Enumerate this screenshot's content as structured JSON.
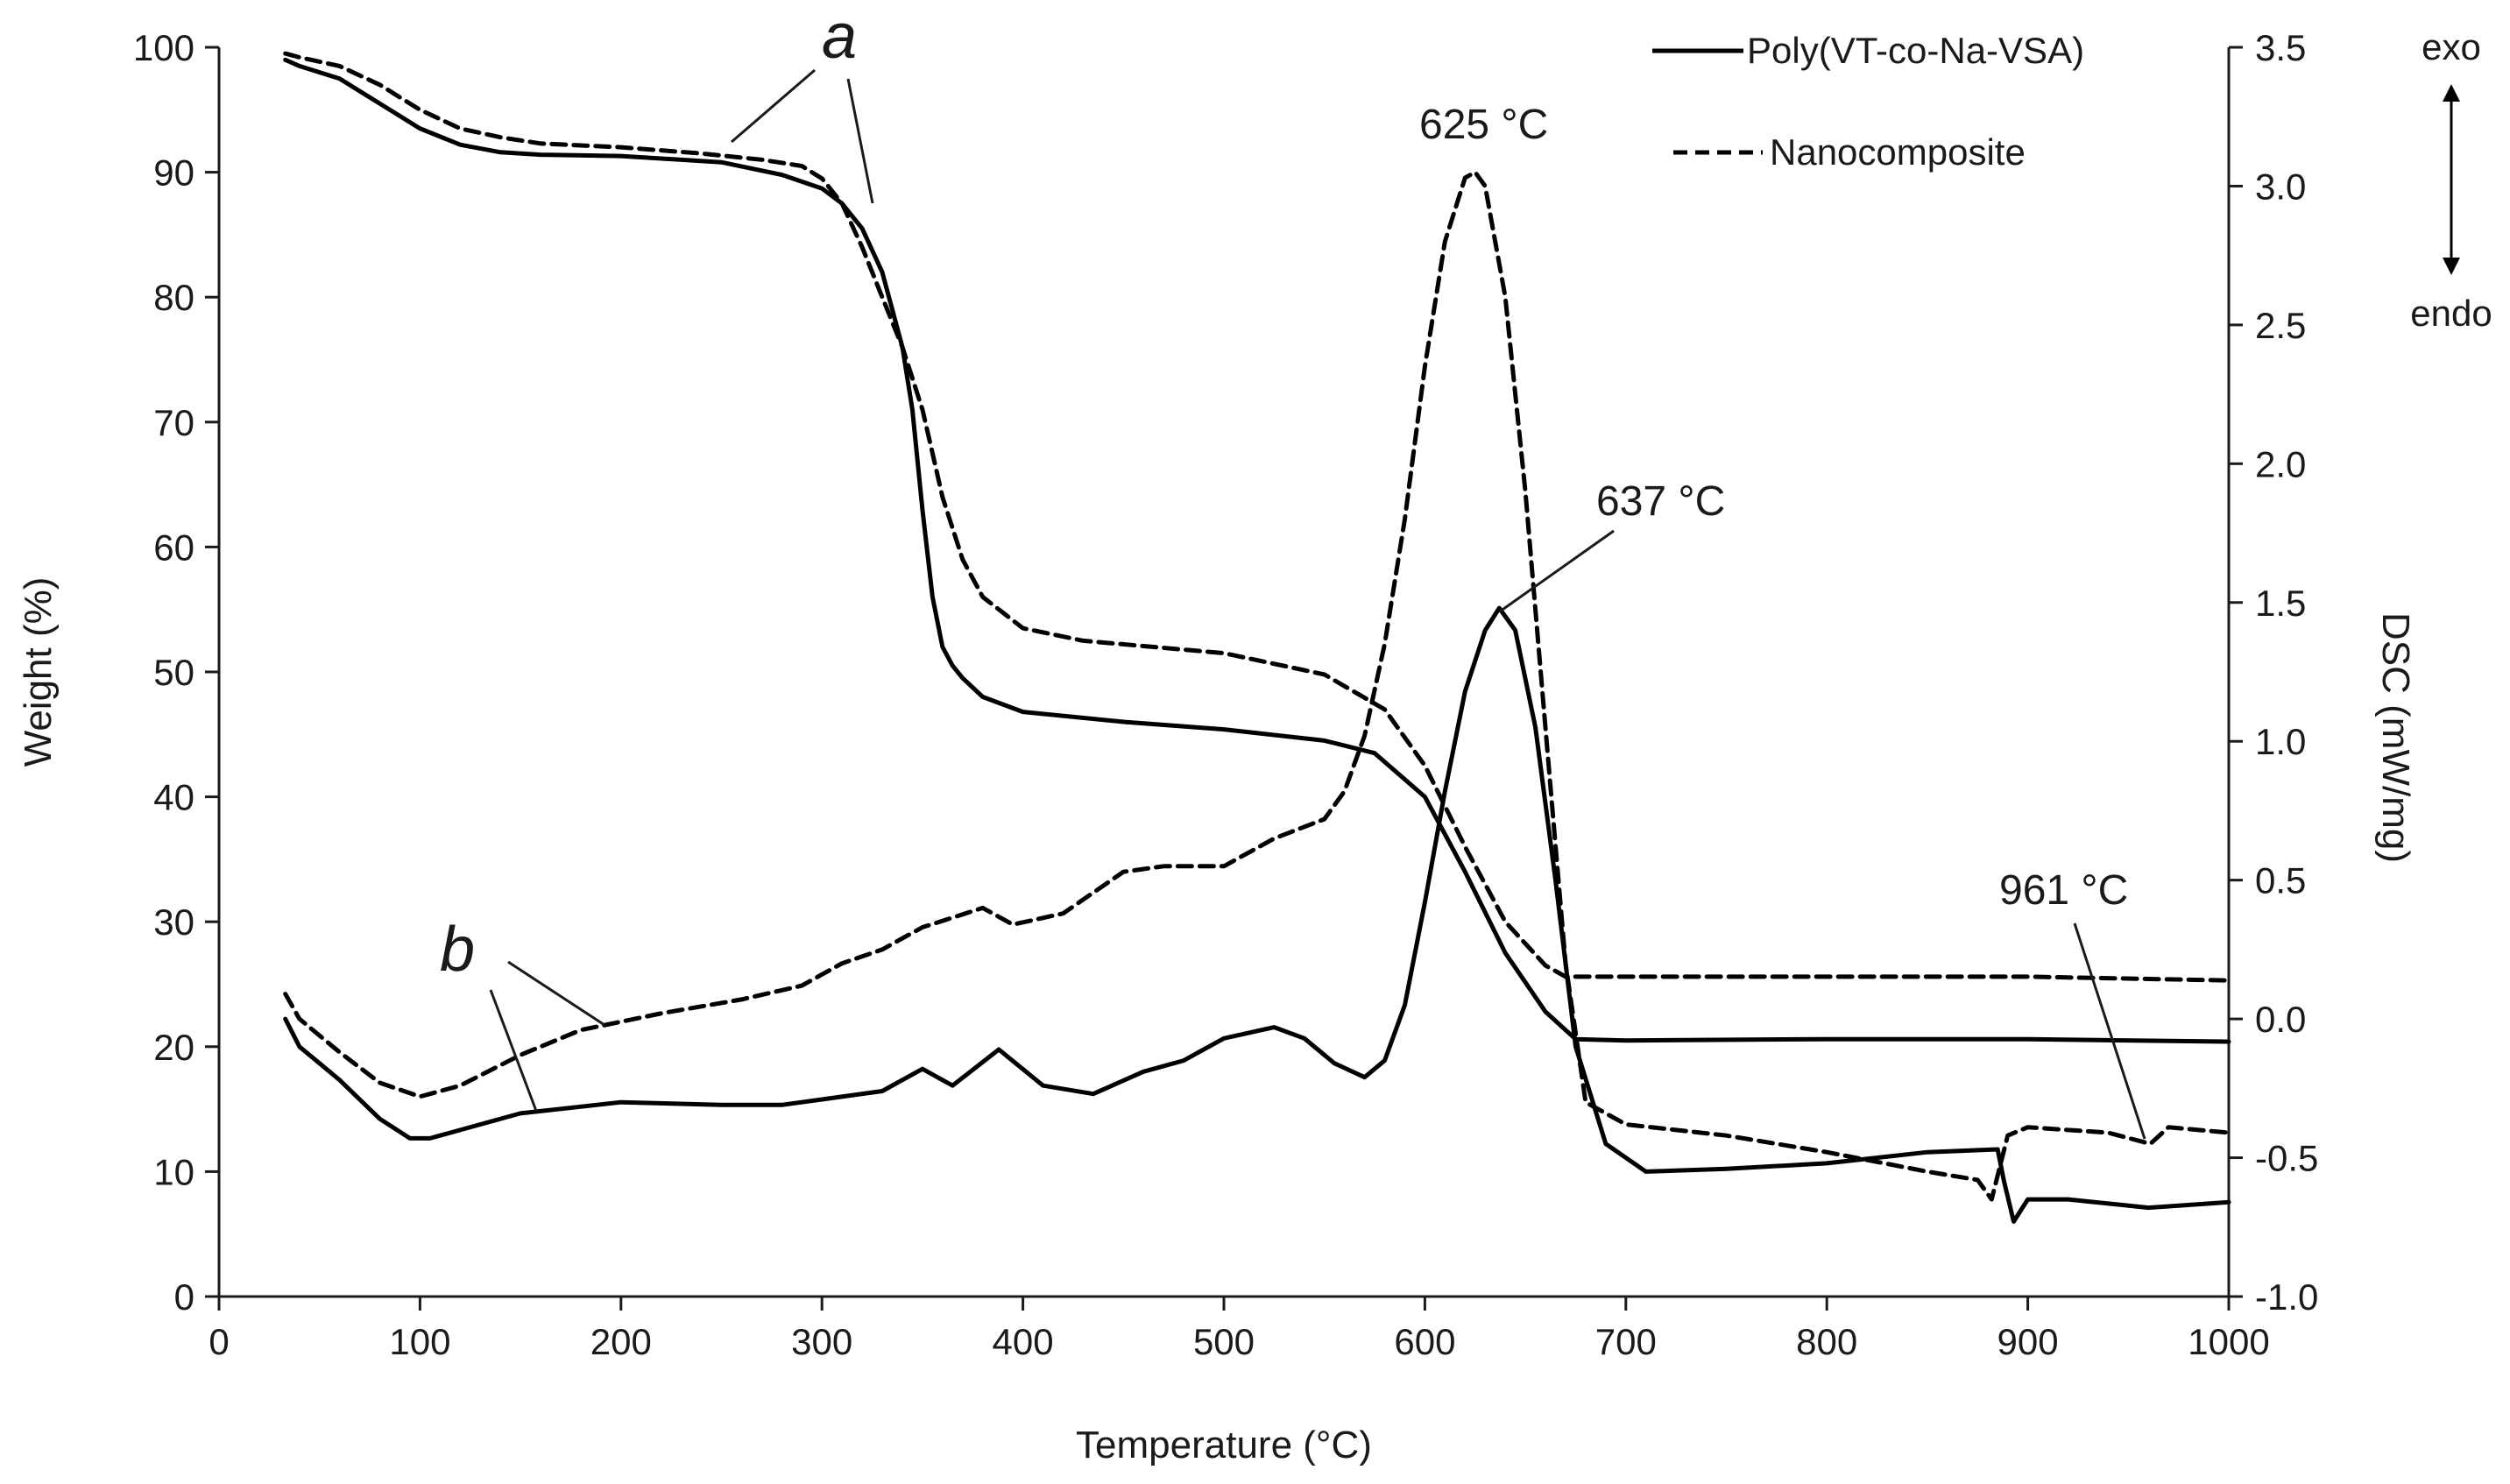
{
  "chart_data": {
    "type": "line",
    "title": "",
    "xlabel": "Temperature (°C)",
    "ylabel_left": "Weight (%)",
    "ylabel_right": "DSC (mW/mg)",
    "xlim": [
      0,
      1000
    ],
    "ylim_left": [
      0,
      100
    ],
    "ylim_right": [
      -1.0,
      3.5
    ],
    "x_ticks": [
      "0",
      "100",
      "200",
      "300",
      "400",
      "500",
      "600",
      "700",
      "800",
      "900",
      "1000"
    ],
    "y_left_ticks": [
      "0",
      "10",
      "20",
      "30",
      "40",
      "50",
      "60",
      "70",
      "80",
      "90",
      "100"
    ],
    "y_right_ticks": [
      "-1.0",
      "-0.5",
      "0.0",
      "0.5",
      "1.0",
      "1.5",
      "2.0",
      "2.5",
      "3.0",
      "3.5"
    ],
    "grid": false,
    "legend_position": "top-right",
    "legend": [
      {
        "name": "Poly(VT-co-Na-VSA)",
        "style": "solid"
      },
      {
        "name": "Nanocomposite",
        "style": "dashed"
      }
    ],
    "direction_labels": {
      "exo": "exo",
      "endo": "endo"
    },
    "curve_labels": {
      "tga": "a",
      "dsc": "b"
    },
    "annotations": [
      {
        "text": "625 °C",
        "x": 625
      },
      {
        "text": "637 °C",
        "x": 637
      },
      {
        "text": "961 °C",
        "x": 961
      }
    ],
    "series": [
      {
        "name": "Poly(VT-co-Na-VSA)",
        "measurement": "TGA",
        "axis": "left",
        "style": "solid",
        "x": [
          33,
          40,
          60,
          80,
          100,
          120,
          140,
          160,
          200,
          250,
          280,
          300,
          310,
          320,
          330,
          340,
          345,
          350,
          355,
          360,
          365,
          370,
          380,
          400,
          450,
          500,
          550,
          575,
          600,
          620,
          640,
          660,
          675,
          700,
          800,
          900,
          1000
        ],
        "y": [
          99,
          98.5,
          97.5,
          95.5,
          93.5,
          92.2,
          91.6,
          91.4,
          91.3,
          90.8,
          89.8,
          88.7,
          87.5,
          85.5,
          82.0,
          76.0,
          71.0,
          63.0,
          56.0,
          52.0,
          50.5,
          49.5,
          48.0,
          46.8,
          46.0,
          45.4,
          44.5,
          43.5,
          40.0,
          34.0,
          27.5,
          22.8,
          20.6,
          20.5,
          20.6,
          20.6,
          20.4
        ]
      },
      {
        "name": "Nanocomposite",
        "measurement": "TGA",
        "axis": "left",
        "style": "dashed",
        "x": [
          33,
          40,
          60,
          80,
          100,
          120,
          140,
          160,
          200,
          240,
          270,
          290,
          300,
          310,
          320,
          330,
          340,
          350,
          355,
          360,
          365,
          370,
          380,
          400,
          430,
          500,
          550,
          580,
          600,
          620,
          640,
          660,
          670,
          700,
          800,
          900,
          1000
        ],
        "y": [
          99.5,
          99.2,
          98.5,
          97.0,
          95.0,
          93.5,
          92.8,
          92.3,
          92.0,
          91.5,
          91.0,
          90.5,
          89.5,
          87.5,
          84.0,
          80.0,
          76.0,
          71.0,
          67.5,
          64.0,
          61.5,
          59.0,
          56.0,
          53.5,
          52.5,
          51.5,
          49.8,
          47.0,
          42.5,
          36.0,
          30.0,
          26.5,
          25.6,
          25.6,
          25.6,
          25.6,
          25.3
        ]
      },
      {
        "name": "Poly(VT-co-Na-VSA)",
        "measurement": "DSC",
        "axis": "right",
        "style": "solid",
        "x": [
          33,
          40,
          60,
          80,
          95,
          105,
          120,
          150,
          200,
          250,
          280,
          300,
          330,
          350,
          365,
          388,
          410,
          435,
          460,
          480,
          500,
          525,
          540,
          555,
          570,
          580,
          590,
          600,
          610,
          620,
          630,
          637,
          645,
          655,
          665,
          675,
          690,
          710,
          750,
          800,
          850,
          885,
          888,
          893,
          900,
          920,
          960,
          1000
        ],
        "y": [
          0.0,
          -0.1,
          -0.22,
          -0.36,
          -0.43,
          -0.43,
          -0.4,
          -0.34,
          -0.3,
          -0.31,
          -0.31,
          -0.29,
          -0.26,
          -0.18,
          -0.24,
          -0.11,
          -0.24,
          -0.27,
          -0.19,
          -0.15,
          -0.07,
          -0.03,
          -0.07,
          -0.16,
          -0.21,
          -0.15,
          0.05,
          0.42,
          0.82,
          1.18,
          1.4,
          1.48,
          1.4,
          1.05,
          0.5,
          -0.1,
          -0.45,
          -0.55,
          -0.54,
          -0.52,
          -0.48,
          -0.47,
          -0.58,
          -0.73,
          -0.65,
          -0.65,
          -0.68,
          -0.66
        ]
      },
      {
        "name": "Nanocomposite",
        "measurement": "DSC",
        "axis": "right",
        "style": "dashed",
        "x": [
          33,
          40,
          60,
          80,
          100,
          120,
          150,
          180,
          220,
          260,
          290,
          310,
          330,
          350,
          380,
          395,
          420,
          450,
          470,
          500,
          525,
          550,
          560,
          570,
          580,
          590,
          600,
          610,
          620,
          625,
          630,
          640,
          650,
          660,
          670,
          680,
          700,
          750,
          800,
          850,
          875,
          882,
          890,
          900,
          940,
          961,
          970,
          1000
        ],
        "y": [
          0.09,
          0.0,
          -0.12,
          -0.23,
          -0.28,
          -0.24,
          -0.13,
          -0.04,
          0.02,
          0.07,
          0.12,
          0.2,
          0.25,
          0.33,
          0.4,
          0.34,
          0.38,
          0.53,
          0.55,
          0.55,
          0.65,
          0.72,
          0.82,
          1.02,
          1.35,
          1.8,
          2.35,
          2.8,
          3.03,
          3.05,
          3.0,
          2.6,
          1.9,
          1.05,
          0.2,
          -0.3,
          -0.38,
          -0.42,
          -0.48,
          -0.55,
          -0.58,
          -0.65,
          -0.42,
          -0.39,
          -0.41,
          -0.45,
          -0.39,
          -0.41
        ]
      }
    ]
  }
}
